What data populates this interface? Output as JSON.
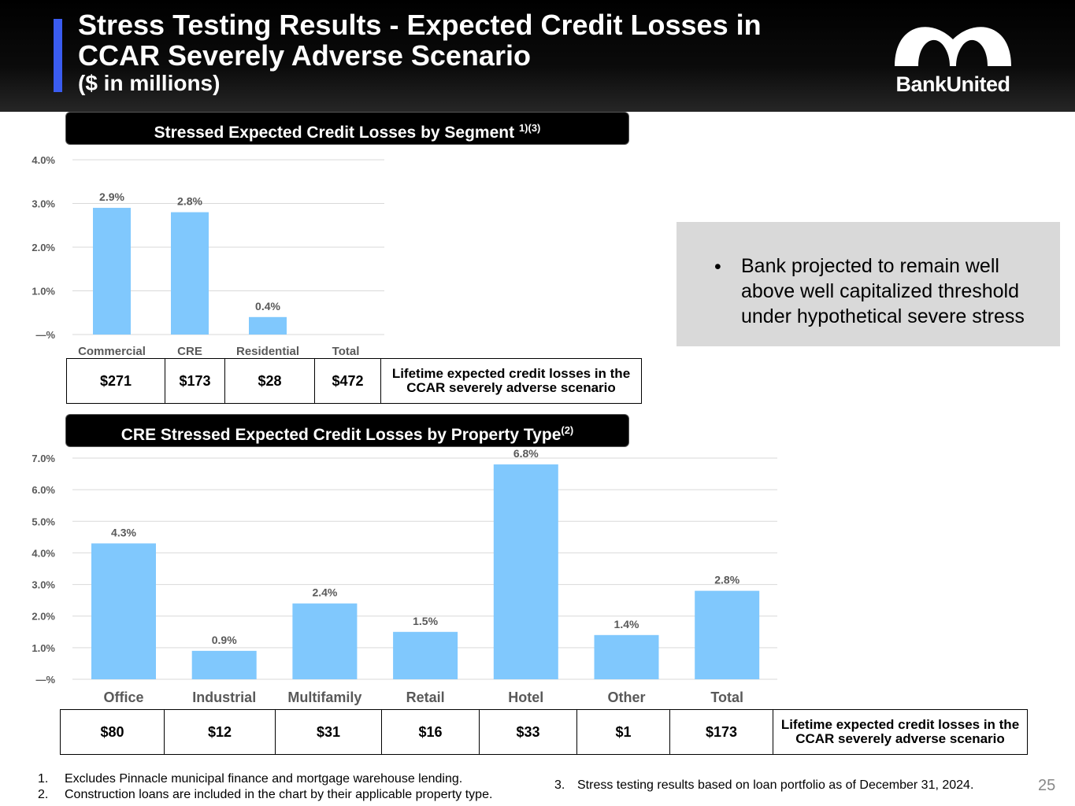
{
  "header": {
    "title_line1": "Stress Testing Results - Expected Credit Losses in",
    "title_line2": "CCAR Severely Adverse Scenario",
    "subtitle": "($ in millions)",
    "logo_text": "BankUnited"
  },
  "section1": {
    "title": "Stressed Expected Credit Losses by Segment",
    "footnote_ref": "1)(3)"
  },
  "section2": {
    "title": "CRE Stressed Expected Credit Losses by Property Type",
    "footnote_ref": "(2)"
  },
  "chart_data": [
    {
      "type": "bar",
      "title": "Stressed Expected Credit Losses by Segment",
      "categories": [
        "Commercial",
        "CRE",
        "Residential",
        "Total"
      ],
      "values": [
        2.9,
        2.8,
        0.4,
        null
      ],
      "data_labels": [
        "2.9%",
        "2.8%",
        "0.4%",
        ""
      ],
      "y_ticks": [
        "—%",
        "1.0%",
        "2.0%",
        "3.0%",
        "4.0%"
      ],
      "ylim": [
        0,
        4
      ],
      "bar_color": "#80c8fd",
      "grid": true
    },
    {
      "type": "bar",
      "title": "CRE Stressed Expected Credit Losses by Property Type",
      "categories": [
        "Office",
        "Industrial",
        "Multifamily",
        "Retail",
        "Hotel",
        "Other",
        "Total"
      ],
      "values": [
        4.3,
        0.9,
        2.4,
        1.5,
        6.8,
        1.4,
        2.8
      ],
      "data_labels": [
        "4.3%",
        "0.9%",
        "2.4%",
        "1.5%",
        "6.8%",
        "1.4%",
        "2.8%"
      ],
      "y_ticks": [
        "—%",
        "1.0%",
        "2.0%",
        "3.0%",
        "4.0%",
        "5.0%",
        "6.0%",
        "7.0%"
      ],
      "ylim": [
        0,
        7
      ],
      "bar_color": "#80c8fd",
      "grid": true
    }
  ],
  "table1": {
    "values": [
      "$271",
      "$173",
      "$28",
      "$472"
    ],
    "description": "Lifetime expected credit losses in the CCAR severely adverse scenario"
  },
  "table2": {
    "values": [
      "$80",
      "$12",
      "$31",
      "$16",
      "$33",
      "$1",
      "$173"
    ],
    "description": "Lifetime expected credit losses in the CCAR severely adverse scenario"
  },
  "callout": {
    "bullet": "•",
    "text": "Bank projected to remain well above well capitalized threshold under hypothetical severe stress"
  },
  "footnotes": [
    {
      "num": "1.",
      "text": "Excludes Pinnacle municipal finance and mortgage warehouse lending."
    },
    {
      "num": "2.",
      "text": "Construction loans are included in the chart by their applicable property type."
    },
    {
      "num": "3.",
      "text": "Stress testing results based on loan portfolio as of December 31, 2024."
    }
  ],
  "page_number": "25",
  "colors": {
    "accent": "#3a5cf0",
    "bar": "#80c8fd",
    "callout_bg": "#d9d9d9"
  }
}
